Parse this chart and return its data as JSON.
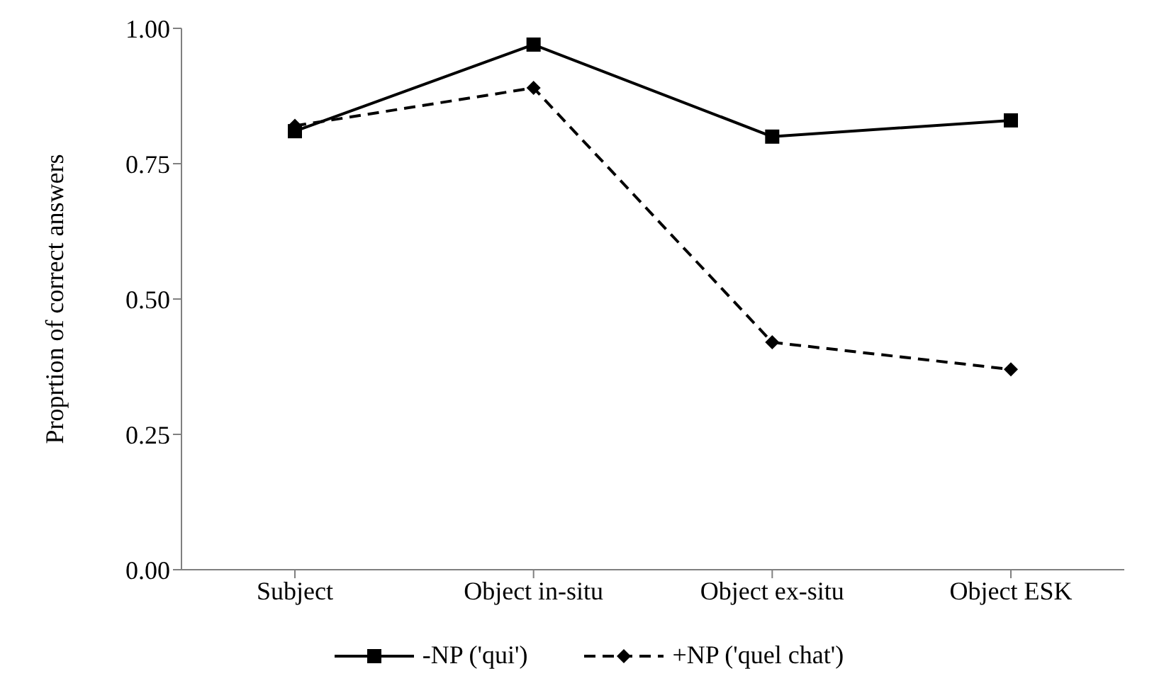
{
  "chart_data": {
    "type": "line",
    "ylabel": "Proprtion of correct answers",
    "categories": [
      "Subject",
      "Object in-situ",
      "Object ex-situ",
      "Object ESK"
    ],
    "series": [
      {
        "name": "-NP ('qui')",
        "color": "#000000",
        "values": [
          0.81,
          0.97,
          0.8,
          0.83
        ],
        "marker": "square",
        "line_style": "solid"
      },
      {
        "name": "+NP ('quel chat')",
        "color": "#000000",
        "values": [
          0.82,
          0.89,
          0.42,
          0.37
        ],
        "marker": "diamond",
        "line_style": "dashed"
      }
    ],
    "ylim": [
      0,
      1
    ],
    "yticks": [
      {
        "value": 0,
        "label": "0.00"
      },
      {
        "value": 0.25,
        "label": "0.25"
      },
      {
        "value": 0.5,
        "label": "0.50"
      },
      {
        "value": 0.75,
        "label": "0.75"
      },
      {
        "value": 1,
        "label": "1.00"
      }
    ],
    "grid": false,
    "legend": "bottom"
  }
}
